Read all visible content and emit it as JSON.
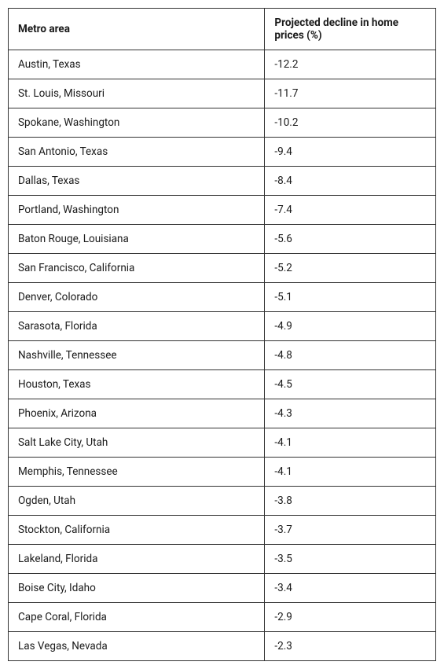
{
  "table": {
    "columns": [
      "Metro area",
      "Projected decline in home prices (%)"
    ],
    "rows": [
      [
        "Austin, Texas",
        "-12.2"
      ],
      [
        "St. Louis, Missouri",
        "-11.7"
      ],
      [
        "Spokane, Washington",
        "-10.2"
      ],
      [
        "San Antonio, Texas",
        "-9.4"
      ],
      [
        "Dallas, Texas",
        "-8.4"
      ],
      [
        "Portland, Washington",
        "-7.4"
      ],
      [
        "Baton Rouge, Louisiana",
        "-5.6"
      ],
      [
        "San Francisco, California",
        "-5.2"
      ],
      [
        "Denver, Colorado",
        "-5.1"
      ],
      [
        "Sarasota, Florida",
        "-4.9"
      ],
      [
        "Nashville, Tennessee",
        "-4.8"
      ],
      [
        "Houston, Texas",
        "-4.5"
      ],
      [
        "Phoenix, Arizona",
        "-4.3"
      ],
      [
        "Salt Lake City, Utah",
        "-4.1"
      ],
      [
        "Memphis, Tennessee",
        "-4.1"
      ],
      [
        "Ogden, Utah",
        "-3.8"
      ],
      [
        "Stockton, California",
        "-3.7"
      ],
      [
        "Lakeland, Florida",
        "-3.5"
      ],
      [
        "Boise City, Idaho",
        "-3.4"
      ],
      [
        "Cape Coral, Florida",
        "-2.9"
      ],
      [
        "Las Vegas, Nevada",
        "-2.3"
      ]
    ],
    "column_widths": [
      "60%",
      "40%"
    ],
    "border_color": "#333333",
    "text_color": "#1a1a1a",
    "background_color": "#ffffff",
    "header_fontweight": 700,
    "cell_fontsize": 13.5,
    "cell_padding": "10px 12px"
  }
}
